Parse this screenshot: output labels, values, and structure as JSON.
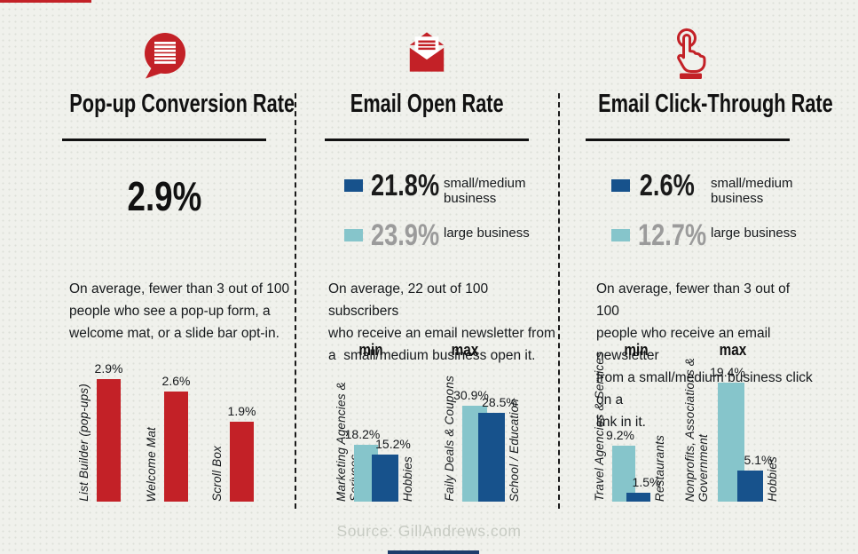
{
  "palette": {
    "red": "#c32127",
    "navy": "#17528c",
    "teal": "#86c5cb",
    "ink": "#141414",
    "muted_value_gray": "#9b9b9b",
    "source_gray": "#c6cac2",
    "bottom_accent_navy": "#1d3c6b"
  },
  "source_credit": "Source: GillAndrews.com",
  "columns": [
    {
      "icon": "speech-bubble-icon",
      "title": "Pop-up Conversion Rate",
      "headline": "2.9%",
      "description": "On average, fewer than 3 out of 100\npeople who see a pop-up form, a\nwelcome mat, or a slide bar opt-in."
    },
    {
      "icon": "open-email-icon",
      "title": "Email Open Rate",
      "legend": [
        {
          "value": "21.8%",
          "label": "small/medium\nbusiness",
          "color": "#17528c",
          "value_color": "#1a1a1a"
        },
        {
          "value": "23.9%",
          "label": "large business",
          "color": "#86c5cb",
          "value_color": "#9b9b9b"
        }
      ],
      "description": "On average, 22 out of 100 subscribers\nwho receive an email newsletter from\na  small/medium business open it.",
      "min_label": "min",
      "max_label": "max"
    },
    {
      "icon": "click-hand-icon",
      "title": "Email Click-Through Rate",
      "legend": [
        {
          "value": "2.6%",
          "label": "small/medium\nbusiness",
          "color": "#17528c",
          "value_color": "#1a1a1a"
        },
        {
          "value": "12.7%",
          "label": "large business",
          "color": "#86c5cb",
          "value_color": "#9b9b9b"
        }
      ],
      "description": "On average, fewer than 3 out of 100\npeople who receive an email newsletter\nfrom a small/medium business click on a\nlink in it.",
      "min_label": "min",
      "max_label": "max"
    }
  ],
  "chart_data": [
    {
      "type": "bar",
      "title": "Pop-up Conversion Rate",
      "unit": "%",
      "categories": [
        "List Builder (pop-ups)",
        "Welcome Mat",
        "Scroll Box"
      ],
      "values": [
        2.9,
        2.6,
        1.9
      ],
      "value_labels": [
        "2.9%",
        "2.6%",
        "1.9%"
      ],
      "bar_color": "#c32127",
      "ylim": [
        0,
        3.5
      ],
      "grid": false
    },
    {
      "type": "bar",
      "title": "Email Open Rate",
      "unit": "%",
      "series": [
        {
          "name": "large business",
          "color": "#86c5cb"
        },
        {
          "name": "small/medium business",
          "color": "#17528c"
        }
      ],
      "groups": [
        {
          "group": "min",
          "bars": [
            {
              "category": "Marketing Agencies & Serivces",
              "series": "large business",
              "value": 18.2,
              "value_label": "18.2%"
            },
            {
              "category": "Hobbies",
              "series": "small/medium business",
              "value": 15.2,
              "value_label": "15.2%"
            }
          ]
        },
        {
          "group": "max",
          "bars": [
            {
              "category": "Faily Deals & Coupons",
              "series": "large business",
              "value": 30.9,
              "value_label": "30.9%"
            },
            {
              "category": "School / Education",
              "series": "small/medium business",
              "value": 28.5,
              "value_label": "28.5%"
            }
          ]
        }
      ],
      "ylim": [
        0,
        35
      ],
      "grid": false
    },
    {
      "type": "bar",
      "title": "Email Click-Through Rate",
      "unit": "%",
      "series": [
        {
          "name": "large business",
          "color": "#86c5cb"
        },
        {
          "name": "small/medium business",
          "color": "#17528c"
        }
      ],
      "groups": [
        {
          "group": "min",
          "bars": [
            {
              "category": "Travel Agencies & Services",
              "series": "large business",
              "value": 9.2,
              "value_label": "9.2%"
            },
            {
              "category": "Restaurants",
              "series": "small/medium business",
              "value": 1.5,
              "value_label": "1.5%"
            }
          ]
        },
        {
          "group": "max",
          "bars": [
            {
              "category": "Nonprofits, Associations &\nGovernment",
              "series": "large business",
              "value": 19.4,
              "value_label": "19.4%"
            },
            {
              "category": "Hobbies",
              "series": "small/medium business",
              "value": 5.1,
              "value_label": "5.1%"
            }
          ]
        }
      ],
      "ylim": [
        0,
        22
      ],
      "grid": false
    }
  ]
}
